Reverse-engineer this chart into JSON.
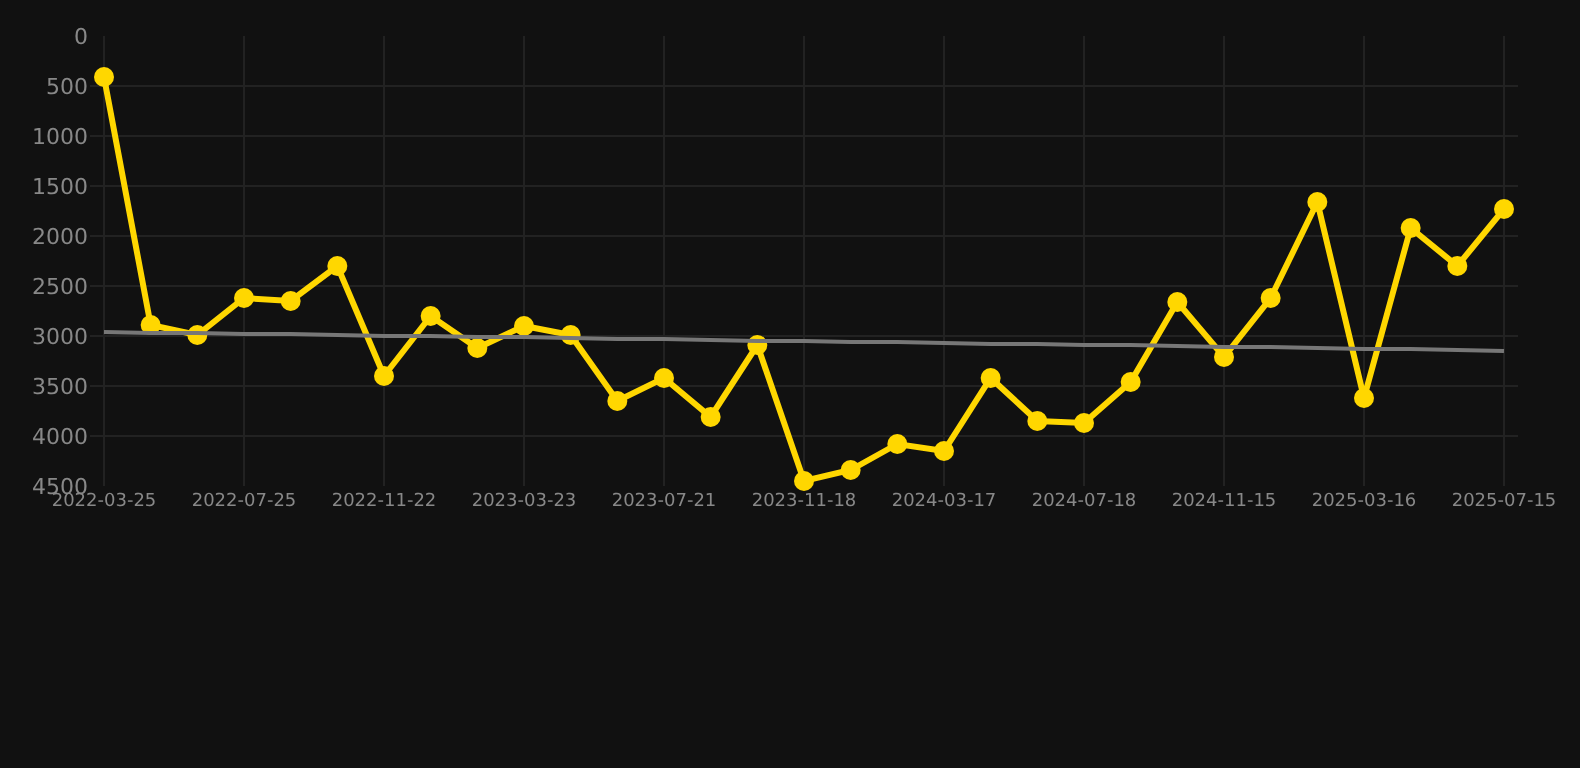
{
  "chart_data": {
    "type": "line",
    "categories": [
      "2022-03-25",
      null,
      null,
      "2022-07-25",
      null,
      null,
      "2022-11-22",
      null,
      null,
      "2023-03-23",
      null,
      null,
      "2023-07-21",
      null,
      null,
      "2023-11-18",
      null,
      null,
      "2024-03-17",
      null,
      null,
      "2024-07-18",
      null,
      null,
      "2024-11-15",
      null,
      null,
      "2025-03-16",
      null,
      null,
      "2025-07-15"
    ],
    "series": [
      {
        "color": "#ffd700",
        "marker": "circle",
        "values": [
          410,
          2890,
          2990,
          2620,
          2650,
          2300,
          3400,
          2800,
          3120,
          2900,
          2990,
          3650,
          3420,
          3810,
          3090,
          4450,
          4340,
          4080,
          4150,
          3420,
          3850,
          3870,
          3460,
          2660,
          3210,
          2620,
          1660,
          3620,
          1920,
          2300,
          1730
        ]
      },
      {
        "color": "#777777",
        "marker": "none",
        "values": [
          2960,
          2970,
          2970,
          2980,
          2980,
          2990,
          3000,
          3000,
          3010,
          3010,
          3020,
          3030,
          3030,
          3040,
          3050,
          3050,
          3060,
          3060,
          3070,
          3080,
          3080,
          3090,
          3090,
          3100,
          3110,
          3110,
          3120,
          3130,
          3130,
          3140,
          3150
        ]
      }
    ],
    "ylim": [
      4500,
      0
    ],
    "yticks": [
      0,
      500,
      1000,
      1500,
      2000,
      2500,
      3000,
      3500,
      4000,
      4500
    ],
    "grid": true
  }
}
